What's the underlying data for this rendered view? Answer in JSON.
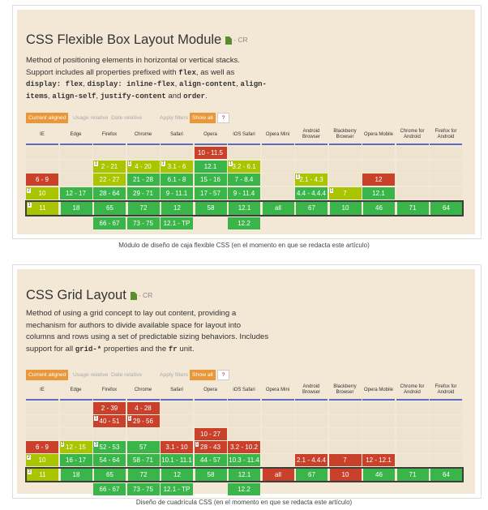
{
  "browsers": [
    "IE",
    "Edge",
    "Firefox",
    "Chrome",
    "Safari",
    "Opera",
    "iOS Safari",
    "Opera Mini",
    "Android Browser",
    "Blackberry Browser",
    "Opera Mobile",
    "Chrome for Android",
    "Firefox for Android"
  ],
  "tabs": [
    "Current aligned",
    "Usage relative",
    "Date relative",
    "Apply filters",
    "Show all",
    "?"
  ],
  "flexbox": {
    "title": "CSS Flexible Box Layout Module",
    "status": "- CR",
    "desc_parts": {
      "p1": "Method of positioning elements in horizontal or vertical stacks. Support includes all properties prefixed with ",
      "c1": "flex",
      "p2": ", as well as ",
      "c2": "display: flex",
      "p3": ", ",
      "c3": "display: inline-flex",
      "p4": ", ",
      "c4": "align-content",
      "p5": ", ",
      "c5": "align-items",
      "p6": ", ",
      "c6": "align-self",
      "p7": ", ",
      "c7": "justify-content",
      "p8": " and ",
      "c8": "order",
      "p9": "."
    },
    "columns": [
      {
        "cells": [
          {
            "t": "",
            "c": "e"
          },
          {
            "t": "",
            "c": "e"
          },
          {
            "t": "6 - 9",
            "c": "r"
          },
          {
            "t": "10",
            "c": "y",
            "note": "2"
          }
        ],
        "current": {
          "t": "11",
          "c": "y",
          "note": "1"
        },
        "future": []
      },
      {
        "cells": [
          {
            "t": "",
            "c": "e"
          },
          {
            "t": "",
            "c": "e"
          },
          {
            "t": "",
            "c": "e"
          },
          {
            "t": "12 - 17",
            "c": "g"
          }
        ],
        "current": {
          "t": "18",
          "c": "g"
        },
        "future": []
      },
      {
        "cells": [
          {
            "t": "",
            "c": "e"
          },
          {
            "t": "2 - 21",
            "c": "y",
            "note": "1"
          },
          {
            "t": "22 - 27",
            "c": "y"
          },
          {
            "t": "28 - 64",
            "c": "g"
          }
        ],
        "current": {
          "t": "65",
          "c": "g"
        },
        "future": [
          {
            "t": "66 - 67",
            "c": "g"
          }
        ]
      },
      {
        "cells": [
          {
            "t": "",
            "c": "e"
          },
          {
            "t": "4 - 20",
            "c": "y",
            "note": "1"
          },
          {
            "t": "21 - 28",
            "c": "g"
          },
          {
            "t": "29 - 71",
            "c": "g"
          }
        ],
        "current": {
          "t": "72",
          "c": "g"
        },
        "future": [
          {
            "t": "73 - 75",
            "c": "g"
          }
        ]
      },
      {
        "cells": [
          {
            "t": "",
            "c": "e"
          },
          {
            "t": "3.1 - 6",
            "c": "y",
            "note": "1"
          },
          {
            "t": "6.1 - 8",
            "c": "g"
          },
          {
            "t": "9 - 11.1",
            "c": "g"
          }
        ],
        "current": {
          "t": "12",
          "c": "g"
        },
        "future": [
          {
            "t": "12.1 - TP",
            "c": "g"
          }
        ]
      },
      {
        "cells": [
          {
            "t": "10 - 11.5",
            "c": "r"
          },
          {
            "t": "12.1",
            "c": "g"
          },
          {
            "t": "15 - 16",
            "c": "g"
          },
          {
            "t": "17 - 57",
            "c": "g"
          }
        ],
        "current": {
          "t": "58",
          "c": "g"
        },
        "future": []
      },
      {
        "cells": [
          {
            "t": "",
            "c": "e"
          },
          {
            "t": "3.2 - 6.1",
            "c": "y",
            "note": "1"
          },
          {
            "t": "7 - 8.4",
            "c": "g"
          },
          {
            "t": "9 - 11.4",
            "c": "g"
          }
        ],
        "current": {
          "t": "12.1",
          "c": "g"
        },
        "future": [
          {
            "t": "12.2",
            "c": "g"
          }
        ]
      },
      {
        "cells": [
          {
            "t": "",
            "c": "e"
          },
          {
            "t": "",
            "c": "e"
          },
          {
            "t": "",
            "c": "e"
          },
          {
            "t": "",
            "c": "e"
          }
        ],
        "current": {
          "t": "all",
          "c": "g"
        },
        "future": []
      },
      {
        "cells": [
          {
            "t": "",
            "c": "e"
          },
          {
            "t": "",
            "c": "e"
          },
          {
            "t": "2.1 - 4.3",
            "c": "y",
            "note": "1"
          },
          {
            "t": "4.4 - 4.4.4",
            "c": "g"
          }
        ],
        "current": {
          "t": "67",
          "c": "g"
        },
        "future": []
      },
      {
        "cells": [
          {
            "t": "",
            "c": "e"
          },
          {
            "t": "",
            "c": "e"
          },
          {
            "t": "",
            "c": "e"
          },
          {
            "t": "7",
            "c": "y",
            "note": "1"
          }
        ],
        "current": {
          "t": "10",
          "c": "g"
        },
        "future": []
      },
      {
        "cells": [
          {
            "t": "",
            "c": "e"
          },
          {
            "t": "",
            "c": "e"
          },
          {
            "t": "12",
            "c": "r"
          },
          {
            "t": "12.1",
            "c": "g"
          }
        ],
        "current": {
          "t": "46",
          "c": "g"
        },
        "future": []
      },
      {
        "cells": [
          {
            "t": "",
            "c": "e"
          },
          {
            "t": "",
            "c": "e"
          },
          {
            "t": "",
            "c": "e"
          },
          {
            "t": "",
            "c": "e"
          }
        ],
        "current": {
          "t": "71",
          "c": "g"
        },
        "future": []
      },
      {
        "cells": [
          {
            "t": "",
            "c": "e"
          },
          {
            "t": "",
            "c": "e"
          },
          {
            "t": "",
            "c": "e"
          },
          {
            "t": "",
            "c": "e"
          }
        ],
        "current": {
          "t": "64",
          "c": "g"
        },
        "future": []
      }
    ],
    "caption": "Módulo de diseño de caja flexible CSS (en el momento en que se redacta este artículo)"
  },
  "grid": {
    "title": "CSS Grid Layout",
    "status": "- CR",
    "desc_parts": {
      "p1": "Method of using a grid concept to lay out content, providing a mechanism for authors to divide available space for layout into columns and rows using a set of predictable sizing behaviors. Includes support for all ",
      "c1": "grid-*",
      "p2": " properties and the ",
      "c2": "fr",
      "p3": " unit."
    },
    "columns": [
      {
        "cells": [
          {
            "t": "",
            "c": "e"
          },
          {
            "t": "",
            "c": "e"
          },
          {
            "t": "",
            "c": "e"
          },
          {
            "t": "6 - 9",
            "c": "r"
          },
          {
            "t": "10",
            "c": "y",
            "note": "2"
          }
        ],
        "current": {
          "t": "11",
          "c": "y",
          "note": "2"
        },
        "future": []
      },
      {
        "cells": [
          {
            "t": "",
            "c": "e"
          },
          {
            "t": "",
            "c": "e"
          },
          {
            "t": "",
            "c": "e"
          },
          {
            "t": "12 - 15",
            "c": "y",
            "note": "2"
          },
          {
            "t": "16 - 17",
            "c": "g"
          }
        ],
        "current": {
          "t": "18",
          "c": "g"
        },
        "future": []
      },
      {
        "cells": [
          {
            "t": "2 - 39",
            "c": "r"
          },
          {
            "t": "40 - 51",
            "c": "r",
            "note": "1"
          },
          {
            "t": "",
            "c": "e"
          },
          {
            "t": "52 - 53",
            "c": "g",
            "note": "3"
          },
          {
            "t": "54 - 64",
            "c": "g"
          }
        ],
        "current": {
          "t": "65",
          "c": "g"
        },
        "future": [
          {
            "t": "66 - 67",
            "c": "g"
          }
        ]
      },
      {
        "cells": [
          {
            "t": "4 - 28",
            "c": "r"
          },
          {
            "t": "29 - 56",
            "c": "r",
            "note": "1"
          },
          {
            "t": "",
            "c": "e"
          },
          {
            "t": "57",
            "c": "g"
          },
          {
            "t": "58 - 71",
            "c": "g"
          }
        ],
        "current": {
          "t": "72",
          "c": "g"
        },
        "future": [
          {
            "t": "73 - 75",
            "c": "g"
          }
        ]
      },
      {
        "cells": [
          {
            "t": "",
            "c": "e"
          },
          {
            "t": "",
            "c": "e"
          },
          {
            "t": "",
            "c": "e"
          },
          {
            "t": "3.1 - 10",
            "c": "r"
          },
          {
            "t": "10.1 - 11.1",
            "c": "g"
          }
        ],
        "current": {
          "t": "12",
          "c": "g"
        },
        "future": [
          {
            "t": "12.1 - TP",
            "c": "g"
          }
        ]
      },
      {
        "cells": [
          {
            "t": "",
            "c": "e"
          },
          {
            "t": "",
            "c": "e"
          },
          {
            "t": "10 - 27",
            "c": "r"
          },
          {
            "t": "28 - 43",
            "c": "r",
            "note": "1"
          },
          {
            "t": "44 - 57",
            "c": "g"
          }
        ],
        "current": {
          "t": "58",
          "c": "g"
        },
        "future": []
      },
      {
        "cells": [
          {
            "t": "",
            "c": "e"
          },
          {
            "t": "",
            "c": "e"
          },
          {
            "t": "",
            "c": "e"
          },
          {
            "t": "3.2 - 10.2",
            "c": "r"
          },
          {
            "t": "10.3 - 11.4",
            "c": "g"
          }
        ],
        "current": {
          "t": "12.1",
          "c": "g"
        },
        "future": [
          {
            "t": "12.2",
            "c": "g"
          }
        ]
      },
      {
        "cells": [
          {
            "t": "",
            "c": "e"
          },
          {
            "t": "",
            "c": "e"
          },
          {
            "t": "",
            "c": "e"
          },
          {
            "t": "",
            "c": "e"
          },
          {
            "t": "",
            "c": "e"
          }
        ],
        "current": {
          "t": "all",
          "c": "r"
        },
        "future": []
      },
      {
        "cells": [
          {
            "t": "",
            "c": "e"
          },
          {
            "t": "",
            "c": "e"
          },
          {
            "t": "",
            "c": "e"
          },
          {
            "t": "",
            "c": "e"
          },
          {
            "t": "2.1 - 4.4.4",
            "c": "r"
          }
        ],
        "current": {
          "t": "67",
          "c": "g"
        },
        "future": []
      },
      {
        "cells": [
          {
            "t": "",
            "c": "e"
          },
          {
            "t": "",
            "c": "e"
          },
          {
            "t": "",
            "c": "e"
          },
          {
            "t": "",
            "c": "e"
          },
          {
            "t": "7",
            "c": "r"
          }
        ],
        "current": {
          "t": "10",
          "c": "r"
        },
        "future": []
      },
      {
        "cells": [
          {
            "t": "",
            "c": "e"
          },
          {
            "t": "",
            "c": "e"
          },
          {
            "t": "",
            "c": "e"
          },
          {
            "t": "",
            "c": "e"
          },
          {
            "t": "12 - 12.1",
            "c": "r"
          }
        ],
        "current": {
          "t": "46",
          "c": "g"
        },
        "future": []
      },
      {
        "cells": [
          {
            "t": "",
            "c": "e"
          },
          {
            "t": "",
            "c": "e"
          },
          {
            "t": "",
            "c": "e"
          },
          {
            "t": "",
            "c": "e"
          },
          {
            "t": "",
            "c": "e"
          }
        ],
        "current": {
          "t": "71",
          "c": "g"
        },
        "future": []
      },
      {
        "cells": [
          {
            "t": "",
            "c": "e"
          },
          {
            "t": "",
            "c": "e"
          },
          {
            "t": "",
            "c": "e"
          },
          {
            "t": "",
            "c": "e"
          },
          {
            "t": "",
            "c": "e"
          }
        ],
        "current": {
          "t": "64",
          "c": "g"
        },
        "future": []
      }
    ],
    "caption": "Diseño de cuadrícula CSS (en el momento en que se redacta este artículo)"
  }
}
